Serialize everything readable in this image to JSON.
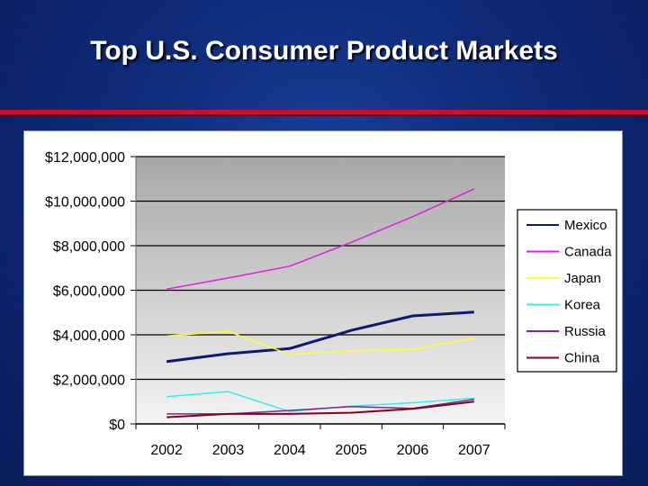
{
  "slide": {
    "title": "Top U.S. Consumer Product Markets"
  },
  "chart_data": {
    "type": "line",
    "title": "",
    "xlabel": "",
    "ylabel": "",
    "x": [
      "2002",
      "2003",
      "2004",
      "2005",
      "2006",
      "2007"
    ],
    "ylim": [
      0,
      12000000
    ],
    "yticks": [
      0,
      2000000,
      4000000,
      6000000,
      8000000,
      10000000,
      12000000
    ],
    "ytick_labels": [
      "$0",
      "$2,000,000",
      "$4,000,000",
      "$6,000,000",
      "$8,000,000",
      "$10,000,000",
      "$12,000,000"
    ],
    "grid": true,
    "legend_position": "right",
    "series": [
      {
        "name": "Mexico",
        "color": "#0b1a6e",
        "values": [
          2800000,
          3150000,
          3380000,
          4200000,
          4850000,
          5020000
        ]
      },
      {
        "name": "Canada",
        "color": "#e020e0",
        "values": [
          6050000,
          6550000,
          7080000,
          8150000,
          9300000,
          10550000
        ]
      },
      {
        "name": "Japan",
        "color": "#ffff33",
        "values": [
          3950000,
          4150000,
          3120000,
          3280000,
          3350000,
          3850000
        ]
      },
      {
        "name": "Korea",
        "color": "#33f0f0",
        "values": [
          1230000,
          1450000,
          550000,
          800000,
          950000,
          1150000
        ]
      },
      {
        "name": "Russia",
        "color": "#7a2a8a",
        "values": [
          450000,
          450000,
          600000,
          780000,
          700000,
          1100000
        ]
      },
      {
        "name": "China",
        "color": "#800020",
        "values": [
          300000,
          450000,
          450000,
          500000,
          680000,
          1000000
        ]
      }
    ]
  }
}
